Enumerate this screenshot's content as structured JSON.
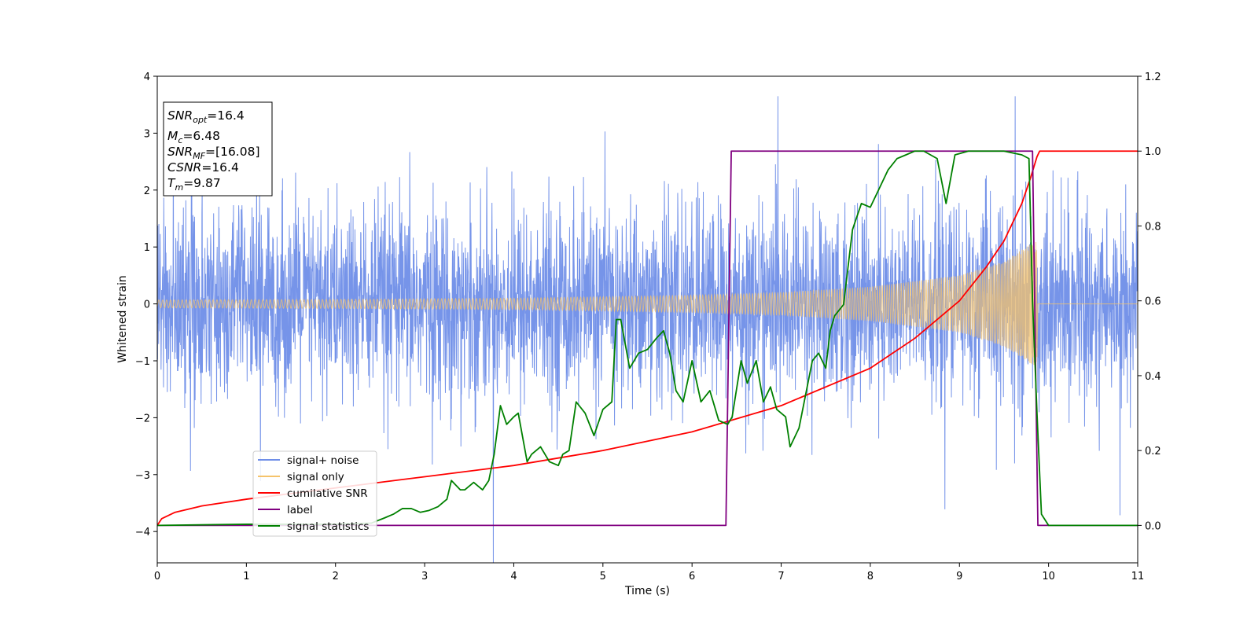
{
  "chart_data": {
    "type": "line",
    "xlabel": "Time (s)",
    "ylabel": "Whitened strain",
    "xlim": [
      0,
      11
    ],
    "ylim": [
      -4.55,
      4.0
    ],
    "y2lim": [
      -0.1,
      1.2
    ],
    "xticks": [
      "0",
      "1",
      "2",
      "3",
      "4",
      "5",
      "6",
      "7",
      "8",
      "9",
      "10",
      "11"
    ],
    "yticks": [
      {
        "v": 4,
        "label": "4"
      },
      {
        "v": 3,
        "label": "3"
      },
      {
        "v": 2,
        "label": "2"
      },
      {
        "v": 1,
        "label": "1"
      },
      {
        "v": 0,
        "label": "0"
      },
      {
        "v": -1,
        "label": "−1"
      },
      {
        "v": -2,
        "label": "−2"
      },
      {
        "v": -3,
        "label": "−3"
      },
      {
        "v": -4,
        "label": "−4"
      }
    ],
    "y2ticks": [
      {
        "v": 1.2,
        "label": "1.2"
      },
      {
        "v": 1.0,
        "label": "1.0"
      },
      {
        "v": 0.8,
        "label": "0.8"
      },
      {
        "v": 0.6,
        "label": "0.6"
      },
      {
        "v": 0.4,
        "label": "0.4"
      },
      {
        "v": 0.2,
        "label": "0.2"
      },
      {
        "v": 0.0,
        "label": "0.0"
      }
    ],
    "legend_position": "lower-left",
    "info_box": {
      "position": "top-left",
      "lines": [
        {
          "var": "SNR",
          "sub": "opt",
          "value": "=16.4"
        },
        {
          "var": "M",
          "sub": "c",
          "value": "=6.48"
        },
        {
          "var": "SNR",
          "sub": "MF",
          "value": "=[16.08]"
        },
        {
          "var": "CSNR",
          "sub": "",
          "value": "=16.4"
        },
        {
          "var": "T",
          "sub": "m",
          "value": "=9.87"
        }
      ]
    },
    "series": [
      {
        "name": "signal+ noise",
        "color": "#6f8ee8",
        "axis": "left",
        "note_type": "noise_band",
        "x_range": [
          0,
          11
        ],
        "sigma": 0.85
      },
      {
        "name": "signal only",
        "color": "#f5c36b",
        "axis": "left",
        "note_type": "chirp",
        "x_range": [
          0,
          9.87
        ],
        "envelope": [
          [
            0,
            0.07
          ],
          [
            2,
            0.08
          ],
          [
            4,
            0.1
          ],
          [
            6,
            0.15
          ],
          [
            7,
            0.2
          ],
          [
            8,
            0.3
          ],
          [
            9,
            0.5
          ],
          [
            9.5,
            0.75
          ],
          [
            9.8,
            1.05
          ],
          [
            9.87,
            1.1
          ]
        ]
      },
      {
        "name": "cumilative SNR",
        "color": "#ff0000",
        "axis": "right",
        "x": [
          0,
          0.05,
          0.2,
          0.5,
          1,
          2,
          3,
          4,
          5,
          6,
          7,
          8,
          8.5,
          9,
          9.3,
          9.5,
          9.7,
          9.8,
          9.87,
          9.9,
          11
        ],
        "y": [
          0.0,
          0.018,
          0.035,
          0.052,
          0.07,
          0.1,
          0.13,
          0.16,
          0.2,
          0.25,
          0.32,
          0.42,
          0.5,
          0.6,
          0.69,
          0.76,
          0.86,
          0.93,
          0.985,
          1.0,
          1.0
        ]
      },
      {
        "name": "label",
        "color": "#800080",
        "axis": "right",
        "x": [
          0,
          6.38,
          6.44,
          9.82,
          9.88,
          11
        ],
        "y": [
          0,
          0,
          1,
          1,
          0,
          0
        ]
      },
      {
        "name": "signal statistics",
        "color": "#008000",
        "axis": "right",
        "x": [
          0,
          1.0,
          2.0,
          2.4,
          2.55,
          2.65,
          2.75,
          2.85,
          2.95,
          3.05,
          3.15,
          3.25,
          3.3,
          3.4,
          3.45,
          3.55,
          3.65,
          3.72,
          3.78,
          3.85,
          3.92,
          4.0,
          4.05,
          4.15,
          4.2,
          4.3,
          4.4,
          4.5,
          4.55,
          4.62,
          4.7,
          4.8,
          4.9,
          5.0,
          5.1,
          5.15,
          5.2,
          5.3,
          5.4,
          5.5,
          5.6,
          5.68,
          5.75,
          5.82,
          5.9,
          6.0,
          6.1,
          6.2,
          6.3,
          6.4,
          6.45,
          6.55,
          6.62,
          6.72,
          6.8,
          6.88,
          6.95,
          7.05,
          7.1,
          7.2,
          7.3,
          7.35,
          7.42,
          7.5,
          7.55,
          7.6,
          7.7,
          7.8,
          7.9,
          8.0,
          8.1,
          8.2,
          8.3,
          8.4,
          8.5,
          8.6,
          8.75,
          8.85,
          8.95,
          9.1,
          9.3,
          9.5,
          9.7,
          9.78,
          9.82,
          9.87,
          9.92,
          10.0,
          11.0
        ],
        "y": [
          0.0,
          0.003,
          0.003,
          0.006,
          0.02,
          0.03,
          0.045,
          0.045,
          0.035,
          0.04,
          0.05,
          0.07,
          0.12,
          0.095,
          0.095,
          0.115,
          0.095,
          0.12,
          0.19,
          0.32,
          0.27,
          0.29,
          0.3,
          0.17,
          0.19,
          0.21,
          0.17,
          0.16,
          0.19,
          0.2,
          0.33,
          0.3,
          0.24,
          0.31,
          0.33,
          0.55,
          0.55,
          0.42,
          0.46,
          0.47,
          0.5,
          0.52,
          0.46,
          0.36,
          0.33,
          0.44,
          0.33,
          0.36,
          0.28,
          0.27,
          0.29,
          0.44,
          0.38,
          0.44,
          0.33,
          0.37,
          0.31,
          0.29,
          0.21,
          0.26,
          0.38,
          0.44,
          0.46,
          0.42,
          0.52,
          0.56,
          0.59,
          0.79,
          0.86,
          0.85,
          0.9,
          0.95,
          0.98,
          0.99,
          1.0,
          1.0,
          0.98,
          0.86,
          0.99,
          1.0,
          1.0,
          1.0,
          0.99,
          0.98,
          0.6,
          0.3,
          0.03,
          0.0,
          0.0
        ]
      }
    ]
  }
}
